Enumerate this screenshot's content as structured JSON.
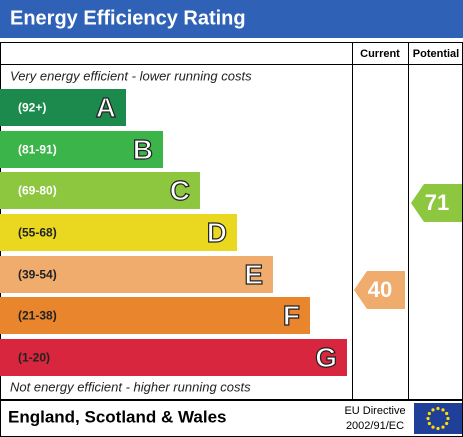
{
  "header": {
    "title": "Energy Efficiency Rating"
  },
  "columns": {
    "current": "Current",
    "potential": "Potential"
  },
  "top_note": "Very energy efficient - lower running costs",
  "bottom_note": "Not energy efficient - higher running costs",
  "bands": [
    {
      "range": "(92+)",
      "letter": "A",
      "color": "#1b8a4c"
    },
    {
      "range": "(81-91)",
      "letter": "B",
      "color": "#3bb44a"
    },
    {
      "range": "(69-80)",
      "letter": "C",
      "color": "#8dc63f"
    },
    {
      "range": "(55-68)",
      "letter": "D",
      "color": "#e9d81f"
    },
    {
      "range": "(39-54)",
      "letter": "E",
      "color": "#efac6d"
    },
    {
      "range": "(21-38)",
      "letter": "F",
      "color": "#e8852d"
    },
    {
      "range": "(1-20)",
      "letter": "G",
      "color": "#d7263d"
    }
  ],
  "current": {
    "value": "40",
    "color": "#efac6d"
  },
  "potential": {
    "value": "71",
    "color": "#8dc63f"
  },
  "footer": {
    "region": "England, Scotland & Wales",
    "directive_line1": "EU Directive",
    "directive_line2": "2002/91/EC"
  }
}
